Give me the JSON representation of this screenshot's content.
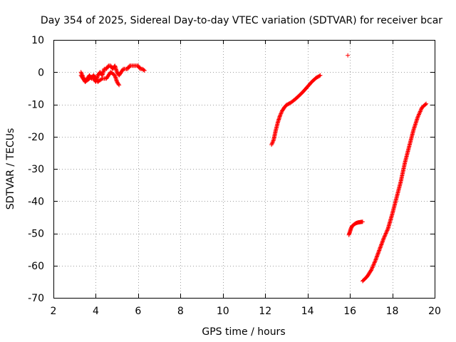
{
  "chart_data": {
    "type": "scatter",
    "title": "Day 354 of 2025, Sidereal Day-to-day VTEC variation (SDTVAR) for receiver bcar",
    "xlabel": "GPS time / hours",
    "ylabel": "SDTVAR / TECUs",
    "xlim": [
      2,
      20
    ],
    "ylim": [
      -70,
      10
    ],
    "xticks": [
      2,
      4,
      6,
      8,
      10,
      12,
      14,
      16,
      18,
      20
    ],
    "yticks": [
      10,
      0,
      -10,
      -20,
      -30,
      -40,
      -50,
      -60,
      -70
    ],
    "grid": true,
    "marker": "plus",
    "color": "#ff0000",
    "series": [
      {
        "x": [
          3.3,
          3.4,
          3.5,
          3.6,
          3.7,
          3.8,
          3.9,
          4.0,
          4.1,
          4.2,
          4.3,
          4.4,
          4.5,
          4.6,
          4.7,
          4.8,
          4.9,
          5.0,
          5.1,
          5.2,
          5.3,
          5.4,
          5.5,
          5.6,
          5.7,
          5.8,
          5.9,
          6.0,
          6.1,
          6.2,
          6.3
        ],
        "y": [
          -1,
          -2,
          -3,
          -2,
          -1,
          -2,
          -2,
          -3,
          -1,
          0,
          -1,
          1,
          1,
          2,
          2,
          1,
          2,
          0,
          -1,
          0,
          1,
          1,
          1,
          2,
          2,
          2,
          2,
          2,
          1,
          1,
          0.5
        ]
      },
      {
        "x": [
          3.3,
          3.5,
          3.7,
          3.9,
          4.1,
          4.3,
          4.5,
          4.7,
          4.9,
          5.0,
          5.1
        ],
        "y": [
          0,
          -3,
          -2,
          -1,
          -3,
          -2,
          -2,
          0,
          -1,
          -3,
          -4
        ]
      },
      {
        "x": [
          12.3,
          12.4,
          12.5,
          12.6,
          12.7,
          12.8,
          12.9,
          13.0,
          13.2,
          13.4,
          13.6,
          13.8,
          14.0,
          14.2,
          14.4,
          14.6
        ],
        "y": [
          -22.5,
          -21,
          -18,
          -15.5,
          -13.5,
          -12,
          -11,
          -10.2,
          -9.5,
          -8.5,
          -7.3,
          -6,
          -4.5,
          -3,
          -1.8,
          -1
        ]
      },
      {
        "x": [
          15.9
        ],
        "y": [
          5.2
        ]
      },
      {
        "x": [
          15.95,
          16.0,
          16.05,
          16.1,
          16.2,
          16.3,
          16.4,
          16.5,
          16.6
        ],
        "y": [
          -50.5,
          -49.5,
          -48.5,
          -47.8,
          -47.2,
          -46.8,
          -46.6,
          -46.5,
          -46.4
        ]
      },
      {
        "x": [
          16.6,
          16.8,
          17.0,
          17.2,
          17.4,
          17.6,
          17.8,
          18.0,
          18.2,
          18.4,
          18.6,
          18.8,
          19.0,
          19.2,
          19.4,
          19.6
        ],
        "y": [
          -64.8,
          -63.5,
          -61.5,
          -58.5,
          -55,
          -51.5,
          -48.5,
          -44,
          -39,
          -34,
          -28,
          -23,
          -18,
          -14,
          -11,
          -9.8
        ]
      }
    ]
  }
}
